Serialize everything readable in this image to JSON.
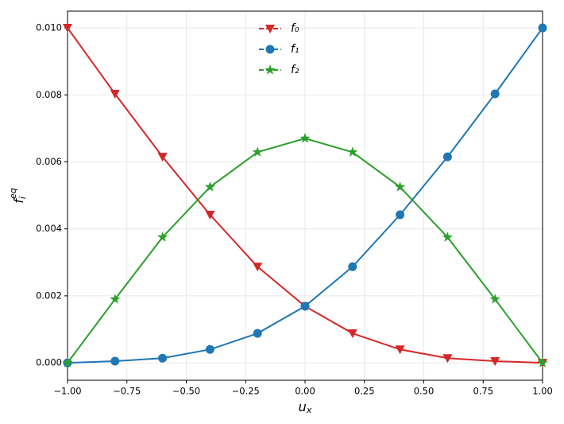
{
  "chart_data": {
    "type": "line",
    "x": [
      -1.0,
      -0.8,
      -0.6,
      -0.4,
      -0.2,
      0.0,
      0.2,
      0.4,
      0.6,
      0.8,
      1.0
    ],
    "series": [
      {
        "name": "f₀",
        "color": "#d62728",
        "marker": "triangle-down",
        "values": [
          0.01,
          0.00803,
          0.00615,
          0.00442,
          0.00287,
          0.00169,
          0.00088,
          0.0004,
          0.00014,
          5e-05,
          0.0
        ]
      },
      {
        "name": "f₁",
        "color": "#1f77b4",
        "marker": "circle",
        "values": [
          0.0,
          5e-05,
          0.00014,
          0.0004,
          0.00088,
          0.00169,
          0.00287,
          0.00442,
          0.00615,
          0.00803,
          0.01
        ]
      },
      {
        "name": "f₂",
        "color": "#2ca02c",
        "marker": "star",
        "values": [
          0.0,
          0.0019,
          0.00375,
          0.00525,
          0.00629,
          0.0067,
          0.00629,
          0.00525,
          0.00375,
          0.0019,
          0.0
        ]
      }
    ],
    "x_label": {
      "base": "u",
      "sub": "x"
    },
    "y_label": {
      "base": "f",
      "sub": "i",
      "sup": "eq"
    },
    "xlim": [
      -1.0,
      1.0
    ],
    "xticks": [
      {
        "value": -1.0,
        "label": "−1.00"
      },
      {
        "value": -0.75,
        "label": "−0.75"
      },
      {
        "value": -0.5,
        "label": "−0.50"
      },
      {
        "value": -0.25,
        "label": "−0.25"
      },
      {
        "value": 0.0,
        "label": "0.00"
      },
      {
        "value": 0.25,
        "label": "0.25"
      },
      {
        "value": 0.5,
        "label": "0.50"
      },
      {
        "value": 0.75,
        "label": "0.75"
      },
      {
        "value": 1.0,
        "label": "1.00"
      }
    ],
    "ylim": [
      -0.00052,
      0.0105
    ],
    "yticks": [
      {
        "value": 0.0,
        "label": "0.000"
      },
      {
        "value": 0.002,
        "label": "0.002"
      },
      {
        "value": 0.004,
        "label": "0.004"
      },
      {
        "value": 0.006,
        "label": "0.006"
      },
      {
        "value": 0.008,
        "label": "0.008"
      },
      {
        "value": 0.01,
        "label": "0.010"
      }
    ],
    "grid": true,
    "legend": "upper center"
  }
}
